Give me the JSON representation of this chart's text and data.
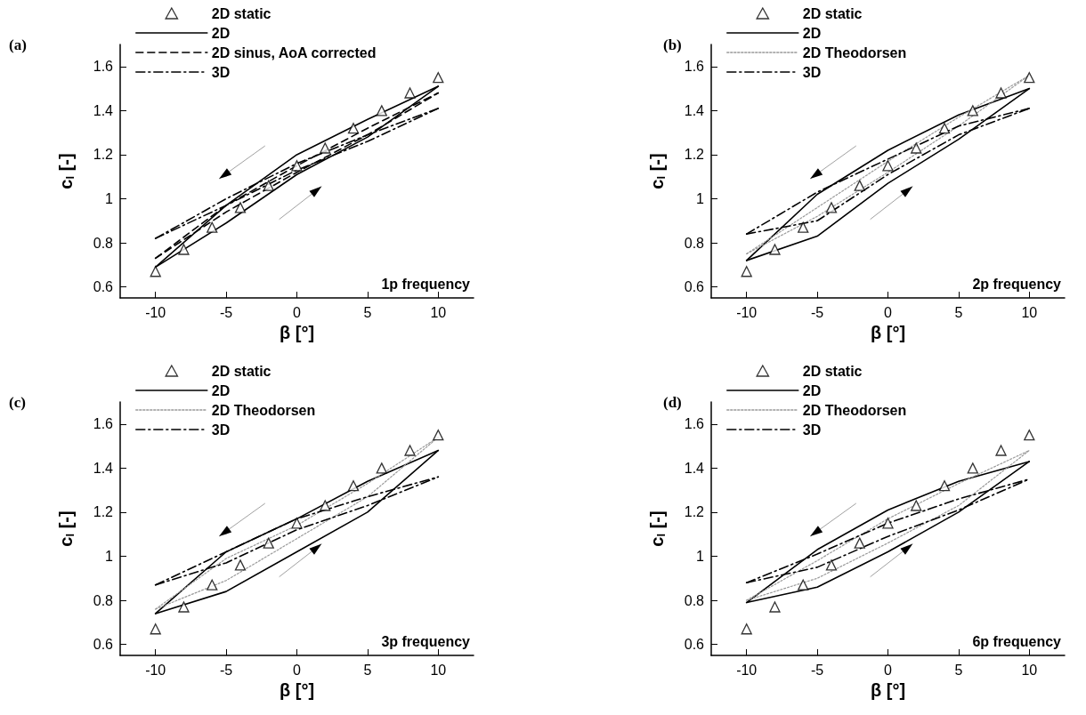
{
  "chart_data": [
    {
      "type": "line",
      "title": "(a)",
      "xlabel": "β [°]",
      "ylabel": "c$_{l}$ [-]",
      "annotations": [
        "1p frequency"
      ],
      "legend": "top left",
      "xlim": [
        -12.5,
        12.5
      ],
      "ylim": [
        0.55,
        1.7
      ],
      "xticks": [
        -10,
        -5,
        0,
        5,
        10
      ],
      "yticks": [
        0.6,
        0.8,
        1,
        1.2,
        1.4,
        1.6
      ],
      "series": [
        {
          "name": "2D static",
          "type": "scatter",
          "marker": "triangle",
          "color": "#000000",
          "x": [
            -10,
            -8,
            -6,
            -4,
            -2,
            0,
            2,
            4,
            6,
            8,
            10
          ],
          "values": [
            0.67,
            0.77,
            0.87,
            0.96,
            1.06,
            1.15,
            1.23,
            1.32,
            1.4,
            1.48,
            1.55
          ]
        },
        {
          "name": "2D",
          "type": "line",
          "line_style": "solid",
          "color": "#000000",
          "x": [
            -10,
            -5,
            0,
            5,
            10
          ],
          "values": [
            0.69,
            0.89,
            1.11,
            1.28,
            1.51
          ]
        },
        {
          "type": "line",
          "line_style": "solid",
          "color": "#000000",
          "x": [
            -10,
            -5,
            0,
            5,
            10
          ],
          "values": [
            0.69,
            0.97,
            1.2,
            1.36,
            1.51
          ]
        },
        {
          "name": "2D sinus, AoA corrected",
          "type": "line",
          "line_style": "dashed",
          "color": "#000000",
          "x": [
            -10,
            -5,
            0,
            5,
            10
          ],
          "values": [
            0.73,
            0.94,
            1.12,
            1.29,
            1.48
          ]
        },
        {
          "type": "line",
          "line_style": "dashed",
          "color": "#000000",
          "x": [
            -10,
            -5,
            0,
            5,
            10
          ],
          "values": [
            0.73,
            0.97,
            1.15,
            1.32,
            1.48
          ]
        },
        {
          "name": "3D",
          "type": "line",
          "line_style": "dashdot",
          "color": "#000000",
          "x": [
            -10,
            -5,
            0,
            5,
            10
          ],
          "values": [
            0.82,
            0.97,
            1.13,
            1.26,
            1.41
          ]
        },
        {
          "type": "line",
          "line_style": "dashdot",
          "color": "#000000",
          "x": [
            -10,
            -5,
            0,
            5,
            10
          ],
          "values": [
            0.82,
            1.0,
            1.16,
            1.29,
            1.41
          ]
        }
      ]
    },
    {
      "type": "line",
      "title": "(b)",
      "xlabel": "β [°]",
      "ylabel": "c$_{l}$ [-]",
      "annotations": [
        "2p frequency"
      ],
      "legend": "top left",
      "xlim": [
        -12.5,
        12.5
      ],
      "ylim": [
        0.55,
        1.7
      ],
      "xticks": [
        -10,
        -5,
        0,
        5,
        10
      ],
      "yticks": [
        0.6,
        0.8,
        1,
        1.2,
        1.4,
        1.6
      ],
      "series": [
        {
          "name": "2D static",
          "type": "scatter",
          "marker": "triangle",
          "color": "#000000",
          "x": [
            -10,
            -8,
            -6,
            -4,
            -2,
            0,
            2,
            4,
            6,
            8,
            10
          ],
          "values": [
            0.67,
            0.77,
            0.87,
            0.96,
            1.06,
            1.15,
            1.23,
            1.32,
            1.4,
            1.48,
            1.55
          ]
        },
        {
          "name": "2D",
          "type": "line",
          "line_style": "solid",
          "color": "#000000",
          "x": [
            -10,
            -5,
            0,
            5,
            10
          ],
          "values": [
            0.72,
            0.83,
            1.07,
            1.27,
            1.5
          ]
        },
        {
          "type": "line",
          "line_style": "solid",
          "color": "#000000",
          "x": [
            -10,
            -5,
            0,
            5,
            10
          ],
          "values": [
            0.72,
            1.02,
            1.22,
            1.38,
            1.5
          ]
        },
        {
          "name": "2D Theodorsen",
          "type": "line",
          "line_style": "dotted",
          "color": "#999999",
          "x": [
            -10,
            -5,
            0,
            5,
            10
          ],
          "values": [
            0.75,
            0.92,
            1.12,
            1.33,
            1.56
          ]
        },
        {
          "type": "line",
          "line_style": "dotted",
          "color": "#999999",
          "x": [
            -10,
            -5,
            0,
            5,
            10
          ],
          "values": [
            0.75,
            0.96,
            1.17,
            1.37,
            1.56
          ]
        },
        {
          "name": "3D",
          "type": "line",
          "line_style": "dashdot",
          "color": "#000000",
          "x": [
            -10,
            -5,
            0,
            5,
            10
          ],
          "values": [
            0.84,
            0.9,
            1.11,
            1.29,
            1.41
          ]
        },
        {
          "type": "line",
          "line_style": "dashdot",
          "color": "#000000",
          "x": [
            -10,
            -5,
            0,
            5,
            10
          ],
          "values": [
            0.84,
            1.03,
            1.18,
            1.33,
            1.41
          ]
        }
      ]
    },
    {
      "type": "line",
      "title": "(c)",
      "xlabel": "β [°]",
      "ylabel": "c$_{l}$ [-]",
      "annotations": [
        "3p frequency"
      ],
      "legend": "top left",
      "xlim": [
        -12.5,
        12.5
      ],
      "ylim": [
        0.55,
        1.7
      ],
      "xticks": [
        -10,
        -5,
        0,
        5,
        10
      ],
      "yticks": [
        0.6,
        0.8,
        1,
        1.2,
        1.4,
        1.6
      ],
      "series": [
        {
          "name": "2D static",
          "type": "scatter",
          "marker": "triangle",
          "color": "#000000",
          "x": [
            -10,
            -8,
            -6,
            -4,
            -2,
            0,
            2,
            4,
            6,
            8,
            10
          ],
          "values": [
            0.67,
            0.77,
            0.87,
            0.96,
            1.06,
            1.15,
            1.23,
            1.32,
            1.4,
            1.48,
            1.55
          ]
        },
        {
          "name": "2D",
          "type": "line",
          "line_style": "solid",
          "color": "#000000",
          "x": [
            -10,
            -5,
            0,
            5,
            10
          ],
          "values": [
            0.74,
            0.84,
            1.02,
            1.2,
            1.48
          ]
        },
        {
          "type": "line",
          "line_style": "solid",
          "color": "#000000",
          "x": [
            -10,
            -5,
            0,
            5,
            10
          ],
          "values": [
            0.74,
            1.02,
            1.17,
            1.34,
            1.48
          ]
        },
        {
          "name": "2D Theodorsen",
          "type": "line",
          "line_style": "dotted",
          "color": "#999999",
          "x": [
            -10,
            -5,
            0,
            5,
            10
          ],
          "values": [
            0.76,
            0.89,
            1.08,
            1.27,
            1.54
          ]
        },
        {
          "type": "line",
          "line_style": "dotted",
          "color": "#999999",
          "x": [
            -10,
            -5,
            0,
            5,
            10
          ],
          "values": [
            0.76,
            0.99,
            1.14,
            1.33,
            1.54
          ]
        },
        {
          "name": "3D",
          "type": "line",
          "line_style": "dashdot",
          "color": "#000000",
          "x": [
            -10,
            -5,
            0,
            5,
            10
          ],
          "values": [
            0.87,
            0.97,
            1.12,
            1.23,
            1.36
          ]
        },
        {
          "type": "line",
          "line_style": "dashdot",
          "color": "#000000",
          "x": [
            -10,
            -5,
            0,
            5,
            10
          ],
          "values": [
            0.87,
            1.02,
            1.17,
            1.27,
            1.36
          ]
        }
      ]
    },
    {
      "type": "line",
      "title": "(d)",
      "xlabel": "β [°]",
      "ylabel": "c$_{l}$ [-]",
      "annotations": [
        "6p frequency"
      ],
      "legend": "top left",
      "xlim": [
        -12.5,
        12.5
      ],
      "ylim": [
        0.55,
        1.7
      ],
      "xticks": [
        -10,
        -5,
        0,
        5,
        10
      ],
      "yticks": [
        0.6,
        0.8,
        1,
        1.2,
        1.4,
        1.6
      ],
      "series": [
        {
          "name": "2D static",
          "type": "scatter",
          "marker": "triangle",
          "color": "#000000",
          "x": [
            -10,
            -8,
            -6,
            -4,
            -2,
            0,
            2,
            4,
            6,
            8,
            10
          ],
          "values": [
            0.67,
            0.77,
            0.87,
            0.96,
            1.06,
            1.15,
            1.23,
            1.32,
            1.4,
            1.48,
            1.55
          ]
        },
        {
          "name": "2D",
          "type": "line",
          "line_style": "solid",
          "color": "#000000",
          "x": [
            -10,
            -5,
            0,
            5,
            10
          ],
          "values": [
            0.79,
            0.86,
            1.02,
            1.2,
            1.43
          ]
        },
        {
          "type": "line",
          "line_style": "solid",
          "color": "#000000",
          "x": [
            -10,
            -5,
            0,
            5,
            10
          ],
          "values": [
            0.79,
            1.03,
            1.21,
            1.34,
            1.43
          ]
        },
        {
          "name": "2D Theodorsen",
          "type": "line",
          "line_style": "dotted",
          "color": "#999999",
          "x": [
            -10,
            -5,
            0,
            5,
            10
          ],
          "values": [
            0.8,
            0.9,
            1.06,
            1.23,
            1.48
          ]
        },
        {
          "type": "line",
          "line_style": "dotted",
          "color": "#999999",
          "x": [
            -10,
            -5,
            0,
            5,
            10
          ],
          "values": [
            0.8,
            0.98,
            1.17,
            1.33,
            1.48
          ]
        },
        {
          "name": "3D",
          "type": "line",
          "line_style": "dashdot",
          "color": "#000000",
          "x": [
            -10,
            -5,
            0,
            5,
            10
          ],
          "values": [
            0.88,
            0.95,
            1.09,
            1.21,
            1.35
          ]
        },
        {
          "type": "line",
          "line_style": "dashdot",
          "color": "#000000",
          "x": [
            -10,
            -5,
            0,
            5,
            10
          ],
          "values": [
            0.88,
            1.01,
            1.15,
            1.26,
            1.35
          ]
        }
      ]
    }
  ]
}
